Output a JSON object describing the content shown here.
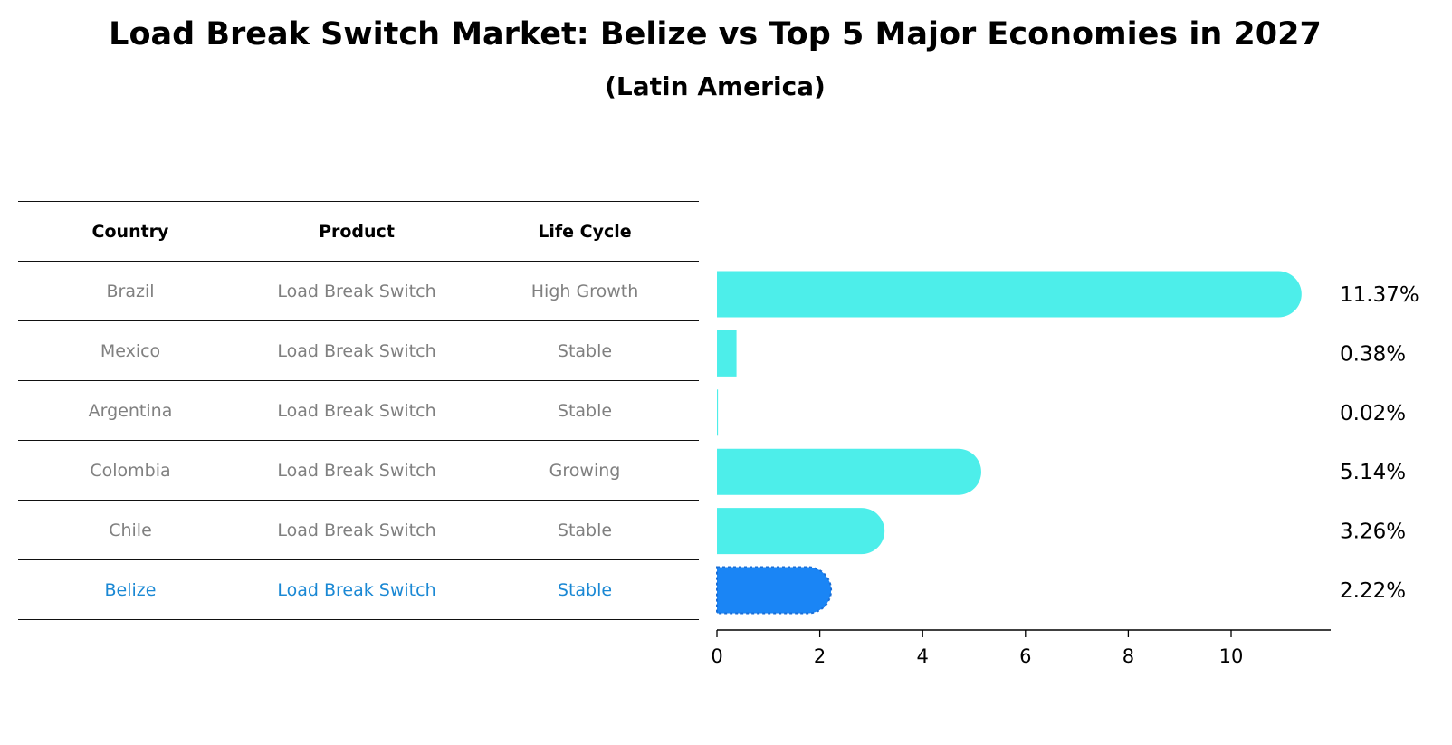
{
  "title": "Load Break Switch Market: Belize vs Top 5 Major Economies in 2027",
  "subtitle": "(Latin America)",
  "table": {
    "headers": [
      "Country",
      "Product",
      "Life Cycle"
    ],
    "rows": [
      {
        "country": "Brazil",
        "product": "Load Break Switch",
        "life_cycle": "High Growth"
      },
      {
        "country": "Mexico",
        "product": "Load Break Switch",
        "life_cycle": "Stable"
      },
      {
        "country": "Argentina",
        "product": "Load Break Switch",
        "life_cycle": "Stable"
      },
      {
        "country": "Colombia",
        "product": "Load Break Switch",
        "life_cycle": "Growing"
      },
      {
        "country": "Chile",
        "product": "Load Break Switch",
        "life_cycle": "Stable"
      },
      {
        "country": "Belize",
        "product": "Load Break Switch",
        "life_cycle": "Stable"
      }
    ],
    "highlight_color": "#1a88d4",
    "text_color": "#808080"
  },
  "chart_data": {
    "type": "bar",
    "orientation": "horizontal",
    "categories": [
      "Brazil",
      "Mexico",
      "Argentina",
      "Colombia",
      "Chile",
      "Belize"
    ],
    "values": [
      11.37,
      0.38,
      0.02,
      5.14,
      3.26,
      2.22
    ],
    "value_labels": [
      "11.37%",
      "0.38%",
      "0.02%",
      "5.14%",
      "3.26%",
      "2.22%"
    ],
    "xticks": [
      "0",
      "2",
      "4",
      "6",
      "8",
      "10"
    ],
    "xlim": [
      0,
      12
    ],
    "colors": {
      "default": "#4deeea",
      "highlight": "#1a85f5"
    },
    "highlight_category": "Belize",
    "grid": false
  }
}
